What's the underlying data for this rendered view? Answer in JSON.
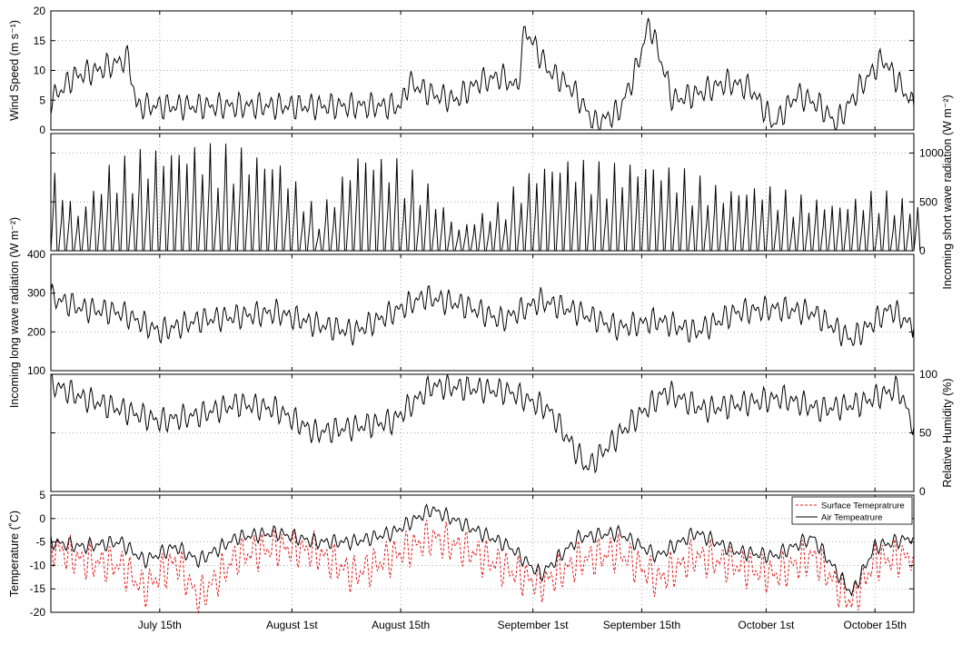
{
  "chart_data": {
    "type": "line",
    "x_axis": {
      "scale": "date",
      "tick_labels": [
        "July 15th",
        "August 1st",
        "August 15th",
        "September 1st",
        "September 15th",
        "October 1st",
        "October 15th"
      ],
      "tick_dates": [
        "07-15",
        "08-01",
        "08-15",
        "09-01",
        "09-15",
        "10-01",
        "10-15"
      ],
      "range": [
        "07-01",
        "10-20"
      ],
      "grid": true
    },
    "panels": [
      {
        "id": "wind",
        "ylabel": "Wind Speed (m s⁻¹)",
        "ylabel_side": "left",
        "ylim": [
          0,
          20
        ],
        "yticks": [
          0,
          5,
          10,
          15,
          20
        ],
        "tick_side": "left",
        "grid": true,
        "series": [
          {
            "color": "#000000",
            "dash": "solid",
            "x": [
              "07-01",
              "07-04",
              "07-07",
              "07-09",
              "07-11",
              "07-12",
              "08-15",
              "08-16",
              "08-19",
              "08-22",
              "08-25",
              "08-28",
              "08-30",
              "08-31",
              "09-03",
              "09-06",
              "09-09",
              "09-12",
              "09-14",
              "09-16",
              "09-19",
              "09-22",
              "09-26",
              "09-29",
              "10-02",
              "10-05",
              "10-08",
              "10-10",
              "10-13",
              "10-16",
              "10-20"
            ],
            "y": [
              5,
              9,
              10,
              11,
              12,
              4,
              4,
              8,
              6,
              5,
              8,
              9,
              7,
              17,
              10,
              7,
              1,
              3,
              9,
              18,
              5,
              6,
              8,
              7,
              1,
              6,
              4,
              1,
              7,
              12,
              4
            ]
          }
        ]
      },
      {
        "id": "shortwave",
        "ylabel": "Incoming short wave radiation (W m⁻²)",
        "ylabel_side": "right",
        "ylim": [
          0,
          1200
        ],
        "yticks": [
          0,
          500,
          1000
        ],
        "tick_side": "right",
        "grid": true,
        "series": [
          {
            "color": "#000000",
            "dash": "solid",
            "daily_peak_x": [
              "07-01",
              "07-04",
              "07-08",
              "07-12",
              "07-16",
              "07-20",
              "07-25",
              "07-30",
              "08-04",
              "08-09",
              "08-14",
              "08-18",
              "08-22",
              "08-27",
              "09-01",
              "09-05",
              "09-10",
              "09-15",
              "09-20",
              "09-25",
              "09-30",
              "10-05",
              "10-10",
              "10-15",
              "10-20"
            ],
            "daily_peak_y": [
              820,
              420,
              900,
              1050,
              1100,
              1120,
              1080,
              950,
              400,
              1050,
              960,
              700,
              250,
              500,
              900,
              980,
              900,
              950,
              850,
              650,
              700,
              580,
              500,
              650,
              480
            ]
          }
        ]
      },
      {
        "id": "longwave",
        "ylabel": "Incoming long wave radiation (W m⁻²)",
        "ylabel_side": "left",
        "ylim": [
          100,
          400
        ],
        "yticks": [
          100,
          200,
          300,
          400
        ],
        "tick_side": "left",
        "grid": true,
        "series": [
          {
            "color": "#000000",
            "dash": "solid",
            "x": [
              "07-01",
              "07-05",
              "07-10",
              "07-15",
              "07-20",
              "07-25",
              "07-30",
              "08-04",
              "08-09",
              "08-13",
              "08-18",
              "08-23",
              "08-28",
              "09-02",
              "09-07",
              "09-12",
              "09-17",
              "09-22",
              "09-27",
              "10-02",
              "10-07",
              "10-12",
              "10-17",
              "10-20"
            ],
            "y": [
              290,
              260,
              250,
              200,
              230,
              240,
              250,
              220,
              200,
              240,
              290,
              270,
              230,
              280,
              250,
              210,
              230,
              200,
              250,
              260,
              250,
              180,
              260,
              210
            ]
          }
        ]
      },
      {
        "id": "humidity",
        "ylabel": "Relative Humidity (%)",
        "ylabel_side": "right",
        "ylim": [
          0,
          100
        ],
        "yticks": [
          0,
          50,
          100
        ],
        "tick_side": "right",
        "grid": true,
        "series": [
          {
            "color": "#000000",
            "dash": "solid",
            "x": [
              "07-01",
              "07-05",
              "07-10",
              "07-15",
              "07-20",
              "07-25",
              "07-30",
              "08-04",
              "08-09",
              "08-14",
              "08-19",
              "08-24",
              "08-29",
              "09-03",
              "09-08",
              "09-13",
              "09-18",
              "09-23",
              "09-28",
              "10-03",
              "10-08",
              "10-13",
              "10-18",
              "10-20"
            ],
            "y": [
              92,
              80,
              70,
              60,
              65,
              75,
              70,
              50,
              55,
              60,
              90,
              88,
              85,
              70,
              20,
              55,
              85,
              70,
              75,
              80,
              70,
              75,
              88,
              55
            ]
          }
        ]
      },
      {
        "id": "temperature",
        "ylabel": "Temperature (˚C)",
        "ylabel_side": "left",
        "ylim": [
          -20,
          5
        ],
        "yticks": [
          -20,
          -15,
          -10,
          -5,
          0,
          5
        ],
        "tick_side": "left",
        "grid": true,
        "legend": {
          "placement": "top-right",
          "entries": [
            "Surface Temepratrure",
            "Air Tempeatrure"
          ]
        },
        "series": [
          {
            "name": "Surface Temepratrure",
            "color": "#e31a1c",
            "dash": "dashed",
            "x": [
              "07-01",
              "07-05",
              "07-10",
              "07-13",
              "07-17",
              "07-20",
              "07-25",
              "07-30",
              "08-04",
              "08-09",
              "08-14",
              "08-19",
              "08-24",
              "08-29",
              "09-02",
              "09-07",
              "09-12",
              "09-17",
              "09-22",
              "09-27",
              "10-02",
              "10-07",
              "10-12",
              "10-15",
              "10-20"
            ],
            "y": [
              -6,
              -9,
              -10,
              -15,
              -9,
              -17,
              -8,
              -6,
              -7,
              -12,
              -8,
              -4,
              -7,
              -11,
              -14,
              -9,
              -7,
              -13,
              -8,
              -10,
              -12,
              -8,
              -18,
              -9,
              -8
            ]
          },
          {
            "name": "Air Tempeatrure",
            "color": "#000000",
            "dash": "solid",
            "x": [
              "07-01",
              "07-05",
              "07-10",
              "07-13",
              "07-17",
              "07-20",
              "07-25",
              "07-30",
              "08-04",
              "08-09",
              "08-14",
              "08-19",
              "08-24",
              "08-29",
              "09-02",
              "09-07",
              "09-12",
              "09-17",
              "09-22",
              "09-27",
              "10-02",
              "10-07",
              "10-12",
              "10-15",
              "10-20"
            ],
            "y": [
              -5,
              -6,
              -5,
              -9,
              -6,
              -9,
              -4,
              -3,
              -5,
              -5,
              -3,
              2,
              -2,
              -6,
              -12,
              -4,
              -3,
              -8,
              -3,
              -7,
              -8,
              -4,
              -16,
              -6,
              -4
            ]
          }
        ]
      }
    ]
  }
}
